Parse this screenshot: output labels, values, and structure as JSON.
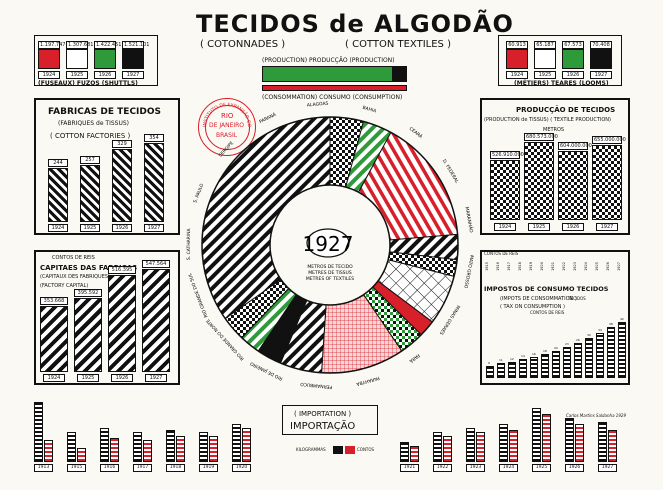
{
  "title": {
    "main": "TECIDOS de ALGODÃO",
    "fr": "( COTONNADES )",
    "en": "( COTTON TEXTILES )"
  },
  "colors": {
    "ink": "#111111",
    "red": "#d8202a",
    "green": "#2f9a3a",
    "paper": "#fbf9f3"
  },
  "spindles": {
    "values": [
      "1.197.747",
      "1.307.681",
      "1.422.451",
      "1.521.101"
    ],
    "years": [
      "1924",
      "1925",
      "1926",
      "1927"
    ],
    "label": "(FUSEAUX) FUZOS (SHUTTLS)",
    "fills": [
      "red",
      "white",
      "green",
      "black"
    ]
  },
  "looms": {
    "values": [
      "60.913",
      "65.187",
      "67.573",
      "70.408"
    ],
    "years": [
      "1924",
      "1925",
      "1926",
      "1927"
    ],
    "label": "(MÉTIERS) TEARES (LOOMS)",
    "fills": [
      "red",
      "white",
      "green",
      "black"
    ]
  },
  "prod_cons": {
    "top": "(PRODUCTION) PRODUCÇÃO (PRODUCTION)",
    "bottom": "(CONSOMMATION) CONSUMO (CONSUMPTION)"
  },
  "stamp": {
    "line1": "INSTITUTO DE EXPANSÃO COMMERCIAL",
    "line2": "RIO",
    "line3": "DE JANEIRO",
    "line4": "BRASIL"
  },
  "factories": {
    "title": "FABRICAS DE TECIDOS",
    "fr": "(FABRIQUES de TISSUS)",
    "en": "( COTTON  FACTORIES )",
    "values": [
      "244",
      "257",
      "329",
      "354"
    ],
    "years": [
      "1924",
      "1925",
      "1926",
      "1927"
    ]
  },
  "capital": {
    "unit": "CONTOS DE REIS",
    "title": "CAPITAES DAS FABRICAS",
    "fr": "(CAPITAUX DES FABRIQUES)",
    "en": "(FACTORY CAPITAL)",
    "values": [
      "353.668",
      "395.592",
      "516.395",
      "547.564"
    ],
    "years": [
      "1924",
      "1925",
      "1926",
      "1927"
    ]
  },
  "production_box": {
    "title": "PRODUCÇÃO DE TECIDOS",
    "sub": "(PRODUCTION de TISSUS) ( TEXTILE PRODUCTION)",
    "unit": "METROS",
    "values": [
      "526.910.000",
      "680.573.000",
      "604.000.000",
      "655.000.000"
    ],
    "years": [
      "1924",
      "1925",
      "1926",
      "1927"
    ]
  },
  "tax": {
    "unit": "CONTOS DE REIS",
    "title": "IMPOSTOS DE CONSUMO TECIDOS",
    "fr": "(IMPOTS DE CONSOMMATION )",
    "en": "( TAX ON CONSUMPTION )",
    "note": "TECIDOS",
    "sub": "CONTOS DE REIS",
    "years": [
      "1915",
      "1916",
      "1917",
      "1918",
      "1919",
      "1920",
      "1921",
      "1922",
      "1923",
      "1924",
      "1925",
      "1926",
      "1927"
    ],
    "values": [
      9,
      11,
      12,
      14,
      16,
      18,
      20,
      23,
      26,
      30,
      34,
      38,
      42
    ]
  },
  "ring": {
    "year": "1927",
    "center1": "METROS DE TECIDO",
    "center2": "METRES DE TISSUS",
    "center3": "METRES OF TEXTILES",
    "states": [
      "ALAGOAS",
      "BAHIA",
      "CEARÁ",
      "D. FEDERAL",
      "MARANHÃO",
      "MATO GROSSO",
      "MINAS GERAES",
      "PARÁ",
      "PARAHYBA",
      "PERNAMBUCO",
      "RIO DE JANEIRO",
      "RIO GRANDE DO NORTE",
      "RIO GRANDE DO SUL",
      "S. CATHARINA",
      "S. PAULO",
      "SERGIPE",
      "PARANÁ"
    ]
  },
  "imports": {
    "title_fr": "( IMPORTATION )",
    "title": "IMPORTAÇÃO",
    "legend": [
      "KILOGRAMMAS",
      "CONTOS"
    ],
    "years": [
      "1913",
      "1915",
      "1916",
      "1917",
      "1918",
      "1919",
      "1920",
      "1921",
      "1922",
      "1923",
      "1924",
      "1925",
      "1926",
      "1927"
    ],
    "kg": [
      60,
      30,
      34,
      30,
      32,
      30,
      38,
      20,
      30,
      34,
      38,
      54,
      44,
      40
    ],
    "contos": [
      22,
      14,
      24,
      22,
      26,
      26,
      34,
      16,
      26,
      30,
      32,
      48,
      38,
      32
    ]
  },
  "signature": "Carlos Martins Saldanha 1929"
}
